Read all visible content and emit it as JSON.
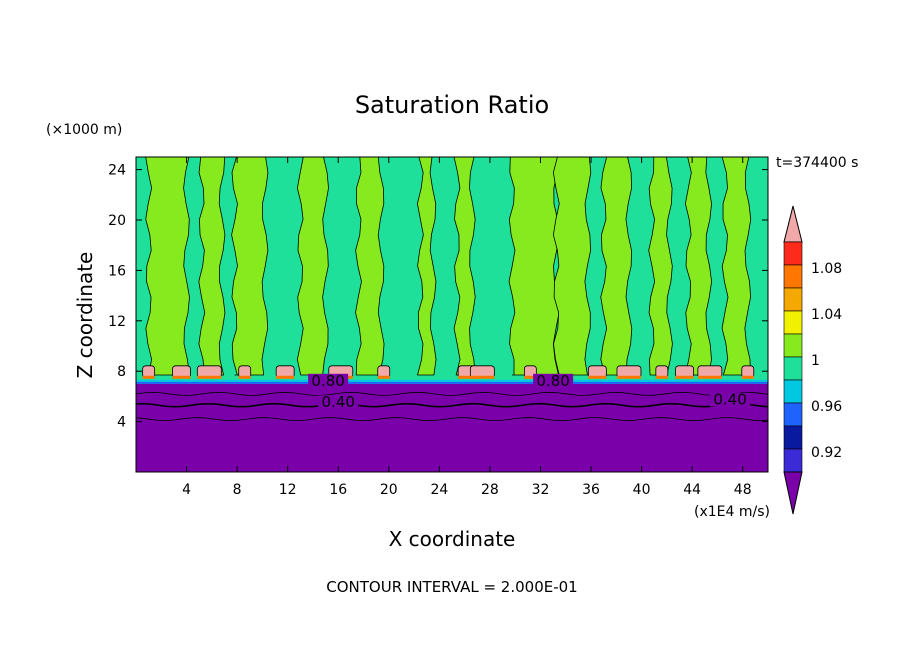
{
  "chart_data": {
    "type": "heatmap",
    "title": "Saturation Ratio",
    "xlabel": "X coordinate",
    "ylabel": "Z coordinate",
    "x_unit": "(x1E4 m/s)",
    "y_unit": "(×1000 m)",
    "time_label": "t=374400 s",
    "footer": "CONTOUR INTERVAL = 2.000E-01",
    "xlim": [
      0,
      50
    ],
    "ylim": [
      0,
      25
    ],
    "x_ticks": [
      "4",
      "8",
      "12",
      "16",
      "20",
      "24",
      "28",
      "32",
      "36",
      "40",
      "44",
      "48"
    ],
    "x_tick_values": [
      4,
      8,
      12,
      16,
      20,
      24,
      28,
      32,
      36,
      40,
      44,
      48
    ],
    "y_ticks": [
      "4",
      "8",
      "12",
      "16",
      "20",
      "24"
    ],
    "y_tick_values": [
      4,
      8,
      12,
      16,
      20,
      24
    ],
    "contour_labels": [
      {
        "text": "0.80",
        "x": 15.2,
        "z": 7.0
      },
      {
        "text": "0.40",
        "x": 16.0,
        "z": 5.3
      },
      {
        "text": "0.80",
        "x": 33.0,
        "z": 7.0
      },
      {
        "text": "0.40",
        "x": 47.0,
        "z": 5.5
      }
    ],
    "colorbar": {
      "labels": [
        "1.08",
        "1.04",
        "1",
        "0.96",
        "0.92"
      ],
      "bins": [
        {
          "color": "#7a00aa",
          "range": "below 0.90"
        },
        {
          "color": "#3b2bd6",
          "range": "0.90 - 0.92"
        },
        {
          "color": "#0a1aa0",
          "range": "0.92 - 0.94"
        },
        {
          "color": "#1f63ff",
          "range": "0.94 - 0.96"
        },
        {
          "color": "#00c8e0",
          "range": "0.96 - 0.98"
        },
        {
          "color": "#1ee09a",
          "range": "0.98 - 1.00"
        },
        {
          "color": "#86ea1e",
          "range": "1.00 - 1.02"
        },
        {
          "color": "#f0f000",
          "range": "1.02 - 1.04"
        },
        {
          "color": "#f5a800",
          "range": "1.04 - 1.06"
        },
        {
          "color": "#ff7700",
          "range": "1.06 - 1.08"
        },
        {
          "color": "#ff2a1a",
          "range": "1.08 - 1.10"
        },
        {
          "color": "#f0a8a8",
          "range": "above 1.10"
        }
      ]
    },
    "fields": {
      "lower_value": "below 0.40",
      "cloud_base_km": 7,
      "saturated_layer_top_km": 8.2,
      "green_columns_x": [
        2.5,
        6.0,
        9.0,
        14.0,
        18.5,
        23.0,
        26.0,
        31.5,
        34.5,
        38.0,
        41.5,
        44.5,
        47.5
      ],
      "green_columns_width": [
        3.0,
        1.6,
        2.4,
        2.0,
        1.8,
        1.0,
        1.2,
        3.5,
        2.5,
        2.0,
        1.4,
        1.6,
        1.8
      ],
      "supersaturated_patches_x": [
        1.0,
        3.6,
        5.8,
        8.6,
        11.8,
        16.2,
        19.6,
        26.2,
        27.4,
        31.2,
        36.5,
        39.0,
        41.6,
        43.4,
        45.4,
        48.4
      ]
    }
  }
}
